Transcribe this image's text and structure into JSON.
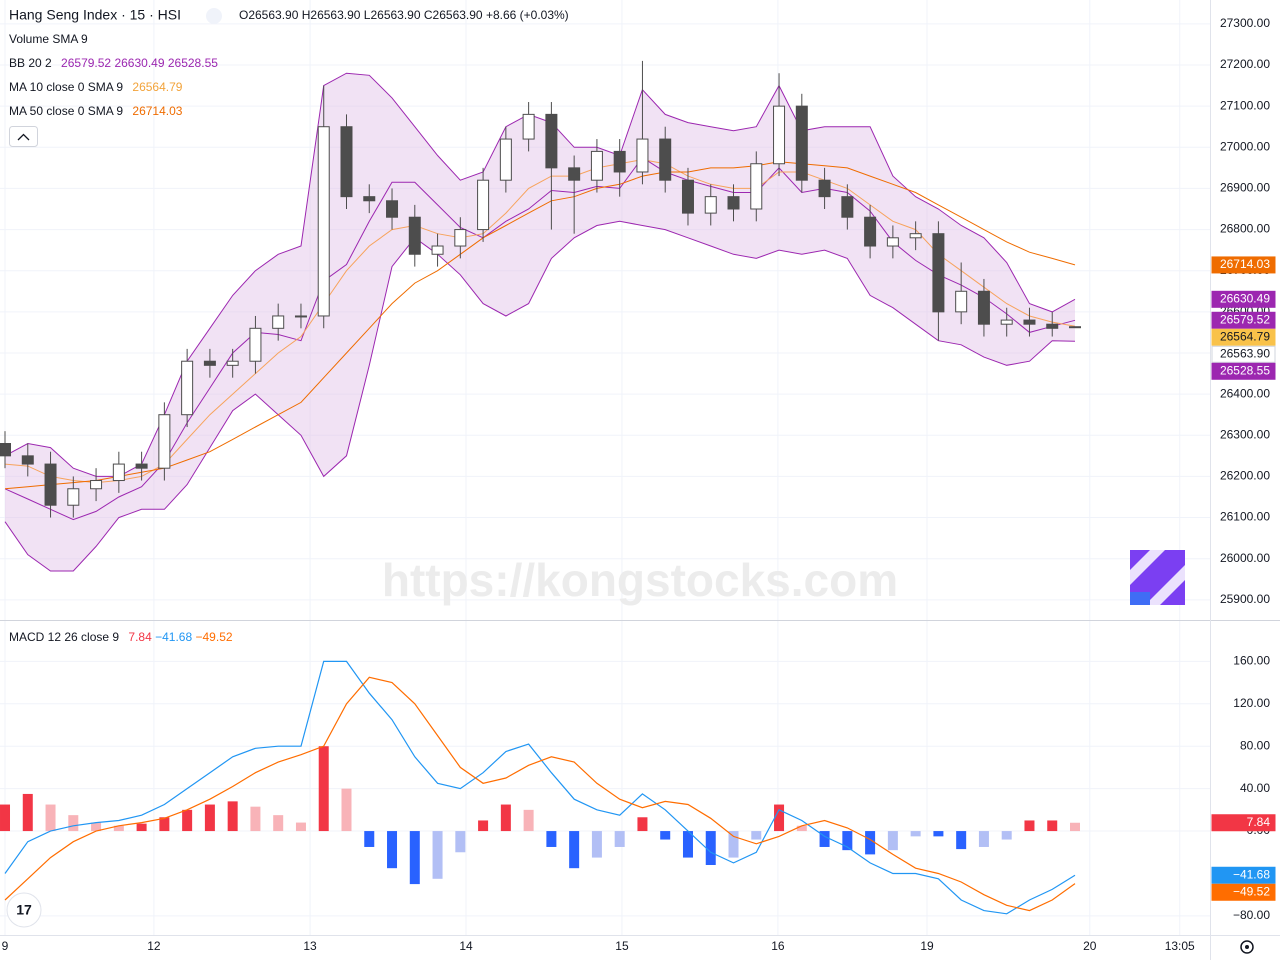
{
  "chart_data": [
    {
      "type": "candlestick",
      "title": "Hang Seng Index · 15 · HSI",
      "header": [
        "O26563.90",
        "H26563.90",
        "L26563.90",
        "C26563.90",
        "+8.66 (+0.03%)"
      ],
      "indicators": [
        {
          "name": "Volume",
          "params": "SMA 9"
        },
        {
          "name": "BB 20 2"
        },
        {
          "name": "MA 10 close 0 SMA 9"
        },
        {
          "name": "MA 50 close 0 SMA 9"
        }
      ],
      "watermark": "https://kongstocks.com",
      "x": [
        0,
        1,
        2,
        3,
        4,
        5,
        6,
        7,
        8,
        9,
        10,
        11,
        12,
        13,
        14,
        15,
        16,
        17,
        18,
        19,
        20,
        21,
        22,
        23,
        24,
        25,
        26,
        27,
        28,
        29,
        30,
        31,
        32,
        33,
        34,
        35,
        36,
        37,
        38,
        39,
        40,
        41,
        42,
        43,
        44,
        45,
        46,
        47
      ],
      "xlim": [
        -0.22,
        52.93
      ],
      "ylim": [
        25851,
        27358
      ],
      "yticks": [
        {
          "value": 27300,
          "label": "27300.00"
        },
        {
          "value": 27200,
          "label": "27200.00"
        },
        {
          "value": 27100,
          "label": "27100.00"
        },
        {
          "value": 27000,
          "label": "27000.00"
        },
        {
          "value": 26900,
          "label": "26900.00"
        },
        {
          "value": 26800,
          "label": "26800.00"
        },
        {
          "value": 26700,
          "label": "26700.00"
        },
        {
          "value": 26600,
          "label": "26600.00"
        },
        {
          "value": 26500,
          "label": "26500.00"
        },
        {
          "value": 26400,
          "label": "26400.00"
        },
        {
          "value": 26300,
          "label": "26300.00"
        },
        {
          "value": 26200,
          "label": "26200.00"
        },
        {
          "value": 26100,
          "label": "26100.00"
        },
        {
          "value": 26000,
          "label": "26000.00"
        },
        {
          "value": 25900,
          "label": "25900.00"
        }
      ],
      "grid": true,
      "up_color": "#ffffff",
      "down_color": "#4d4d4d",
      "wick_color": "#4d4d4d",
      "candles": {
        "open": [
          26280,
          26250,
          26230,
          26130,
          26170,
          26190,
          26230,
          26220,
          26350,
          26480,
          26470,
          26480,
          26560,
          26590,
          26590,
          27050,
          26880,
          26870,
          26830,
          26740,
          26760,
          26800,
          26920,
          27020,
          27080,
          26950,
          26920,
          26990,
          26940,
          27020,
          26920,
          26840,
          26880,
          26850,
          26960,
          27100,
          26920,
          26880,
          26830,
          26760,
          26780,
          26790,
          26600,
          26650,
          26570,
          26580,
          26570,
          26563.9
        ],
        "high": [
          26310,
          26280,
          26260,
          26200,
          26220,
          26260,
          26260,
          26380,
          26510,
          26510,
          26510,
          26590,
          26620,
          26620,
          27150,
          27080,
          26910,
          26900,
          26860,
          26790,
          26830,
          26950,
          27050,
          27110,
          27110,
          26980,
          27020,
          27020,
          27210,
          27050,
          26950,
          26910,
          26910,
          26990,
          27180,
          27130,
          26950,
          26910,
          26860,
          26810,
          26820,
          26820,
          26720,
          26680,
          26610,
          26610,
          26600,
          26563.9
        ],
        "low": [
          26220,
          26200,
          26100,
          26100,
          26140,
          26160,
          26190,
          26190,
          26320,
          26440,
          26440,
          26450,
          26530,
          26560,
          26560,
          26850,
          26840,
          26800,
          26710,
          26710,
          26730,
          26770,
          26890,
          26990,
          26800,
          26790,
          26890,
          26880,
          26910,
          26890,
          26810,
          26810,
          26820,
          26820,
          26930,
          26890,
          26850,
          26800,
          26730,
          26730,
          26750,
          26530,
          26570,
          26540,
          26540,
          26540,
          26540,
          26563.9
        ],
        "close": [
          26250,
          26230,
          26130,
          26170,
          26190,
          26230,
          26220,
          26350,
          26480,
          26470,
          26480,
          26560,
          26590,
          26590,
          27050,
          26880,
          26870,
          26830,
          26740,
          26760,
          26800,
          26920,
          27020,
          27080,
          26950,
          26920,
          26990,
          26940,
          27020,
          26920,
          26840,
          26880,
          26850,
          26960,
          27100,
          26920,
          26880,
          26830,
          26760,
          26780,
          26790,
          26600,
          26650,
          26570,
          26580,
          26570,
          26560,
          26563.9
        ],
        "last_label": "26563.90"
      },
      "series": [
        {
          "color": "#9c27b0",
          "last_label": "26579.52",
          "values": [
            26170,
            26145,
            26120,
            26095,
            26115,
            26150,
            26175,
            26235,
            26330,
            26415,
            26500,
            26550,
            26545,
            26530,
            26675,
            26715,
            26820,
            26915,
            26915,
            26860,
            26805,
            26780,
            26820,
            26850,
            26895,
            26890,
            26905,
            26900,
            26975,
            26940,
            26920,
            26905,
            26890,
            26890,
            26950,
            26890,
            26900,
            26890,
            26845,
            26770,
            26725,
            26690,
            26665,
            26635,
            26595,
            26550,
            26565,
            26579.52
          ]
        },
        {
          "color": "#9c27b0",
          "last_label": "26630.49",
          "values": [
            26250,
            26280,
            26270,
            26220,
            26200,
            26200,
            26230,
            26350,
            26480,
            26560,
            26640,
            26700,
            26740,
            26760,
            27150,
            27180,
            27175,
            27120,
            27050,
            26980,
            26920,
            26940,
            27050,
            27080,
            27060,
            27000,
            27000,
            26980,
            27140,
            27080,
            27060,
            27050,
            27040,
            27050,
            27150,
            27040,
            27050,
            27050,
            27050,
            26930,
            26880,
            26850,
            26810,
            26780,
            26720,
            26620,
            26600,
            26630.49
          ]
        },
        {
          "color": "#9c27b0",
          "last_label": "26528.55",
          "values": [
            26090,
            26010,
            25970,
            25970,
            26030,
            26100,
            26120,
            26120,
            26180,
            26270,
            26360,
            26400,
            26350,
            26300,
            26200,
            26250,
            26470,
            26710,
            26780,
            26740,
            26690,
            26620,
            26590,
            26620,
            26730,
            26780,
            26810,
            26820,
            26810,
            26800,
            26780,
            26760,
            26740,
            26730,
            26750,
            26740,
            26750,
            26730,
            26640,
            26610,
            26570,
            26530,
            26520,
            26490,
            26470,
            26480,
            26530,
            26528.55
          ]
        },
        {
          "color": "#f7a35c",
          "last_label": "26564.79",
          "values": [
            26230,
            26225,
            26200,
            26190,
            26185,
            26190,
            26200,
            26230,
            26290,
            26350,
            26400,
            26450,
            26500,
            26540,
            26620,
            26700,
            26760,
            26800,
            26810,
            26790,
            26780,
            26790,
            26840,
            26900,
            26930,
            26930,
            26950,
            26960,
            26970,
            26960,
            26930,
            26910,
            26900,
            26900,
            26940,
            26940,
            26920,
            26900,
            26860,
            26820,
            26800,
            26740,
            26700,
            26660,
            26620,
            26590,
            26575,
            26564.79
          ]
        },
        {
          "color": "#ef6c00",
          "last_label": "26714.03",
          "values": [
            26170,
            26175,
            26180,
            26185,
            26190,
            26200,
            26210,
            26220,
            26240,
            26260,
            26290,
            26320,
            26350,
            26380,
            26440,
            26500,
            26560,
            26620,
            26670,
            26700,
            26740,
            26780,
            26810,
            26840,
            26870,
            26880,
            26900,
            26910,
            26930,
            26940,
            26940,
            26950,
            26950,
            26955,
            26965,
            26960,
            26955,
            26950,
            26930,
            26910,
            26890,
            26860,
            26830,
            26800,
            26770,
            26745,
            26730,
            26714.03
          ]
        }
      ],
      "band_fill": "#e1bee7"
    },
    {
      "type": "macd",
      "title": "MACD 12 26 close 9",
      "x": [
        0,
        1,
        2,
        3,
        4,
        5,
        6,
        7,
        8,
        9,
        10,
        11,
        12,
        13,
        14,
        15,
        16,
        17,
        18,
        19,
        20,
        21,
        22,
        23,
        24,
        25,
        26,
        27,
        28,
        29,
        30,
        31,
        32,
        33,
        34,
        35,
        36,
        37,
        38,
        39,
        40,
        41,
        42,
        43,
        44,
        45,
        46,
        47
      ],
      "xlim": [
        -0.22,
        52.93
      ],
      "xticks": [
        {
          "value": 0,
          "label": "9"
        },
        {
          "value": 6.54,
          "label": "12"
        },
        {
          "value": 13.4,
          "label": "13"
        },
        {
          "value": 20.25,
          "label": "14"
        },
        {
          "value": 27.1,
          "label": "15"
        },
        {
          "value": 33.95,
          "label": "16"
        },
        {
          "value": 40.5,
          "label": "19"
        },
        {
          "value": 47.65,
          "label": "20"
        },
        {
          "value": 51.6,
          "label": "13:05"
        }
      ],
      "ylim": [
        -98,
        199
      ],
      "yticks": [
        {
          "value": 160,
          "label": "160.00"
        },
        {
          "value": 120,
          "label": "120.00"
        },
        {
          "value": 80,
          "label": "80.00"
        },
        {
          "value": 40,
          "label": "40.00"
        },
        {
          "value": 0,
          "label": "0.00"
        },
        {
          "value": -80,
          "label": "−80.00"
        }
      ],
      "grid": true,
      "histogram": {
        "last_label": "7.84",
        "colors": {
          "pos_rise": "#f23645",
          "pos_fall": "#f8b3b8",
          "neg_fall": "#2962ff",
          "neg_rise": "#b2bff5"
        },
        "values": [
          25,
          35,
          25,
          15,
          8,
          5,
          7,
          13,
          20,
          25,
          28,
          23,
          15,
          8,
          80,
          40,
          -15,
          -35,
          -50,
          -45,
          -20,
          10,
          25,
          20,
          -15,
          -35,
          -25,
          -15,
          13,
          -8,
          -25,
          -32,
          -25,
          -8,
          25,
          5,
          -15,
          -18,
          -22,
          -18,
          -5,
          -5,
          -17,
          -15,
          -8,
          10,
          10,
          7.84
        ]
      },
      "series": [
        {
          "color": "#2196f3",
          "last_label": "−41.68",
          "values": [
            -40,
            -10,
            0,
            5,
            8,
            10,
            15,
            25,
            40,
            55,
            70,
            78,
            80,
            80,
            160,
            160,
            130,
            105,
            70,
            45,
            40,
            55,
            75,
            82,
            55,
            30,
            20,
            15,
            35,
            20,
            0,
            -20,
            -30,
            -20,
            20,
            10,
            -5,
            -15,
            -30,
            -40,
            -40,
            -45,
            -65,
            -75,
            -78,
            -65,
            -55,
            -41.68
          ]
        },
        {
          "color": "#ff6d00",
          "last_label": "−49.52",
          "values": [
            -65,
            -45,
            -25,
            -10,
            0,
            5,
            8,
            12,
            20,
            30,
            42,
            55,
            65,
            72,
            80,
            120,
            145,
            140,
            120,
            90,
            60,
            45,
            50,
            62,
            70,
            65,
            45,
            30,
            22,
            28,
            25,
            12,
            -5,
            -12,
            -5,
            5,
            10,
            3,
            -8,
            -22,
            -35,
            -40,
            -48,
            -60,
            -70,
            -75,
            -65,
            -49.52
          ]
        }
      ]
    }
  ]
}
